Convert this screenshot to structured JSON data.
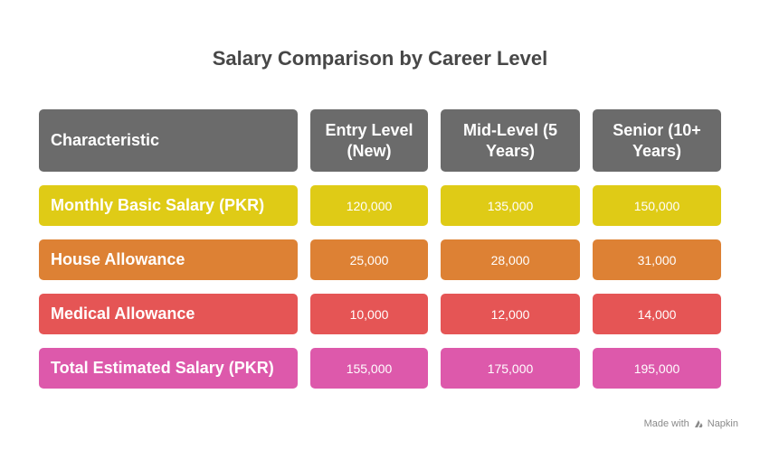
{
  "title": "Salary Comparison by Career Level",
  "table": {
    "headers": [
      "Characteristic",
      "Entry Level (New)",
      "Mid-Level (5 Years)",
      "Senior (10+ Years)"
    ],
    "rows": [
      {
        "label": "Monthly Basic Salary (PKR)",
        "values": [
          "120,000",
          "135,000",
          "150,000"
        ],
        "color": "#dfcb16"
      },
      {
        "label": "House Allowance",
        "values": [
          "25,000",
          "28,000",
          "31,000"
        ],
        "color": "#dd8134"
      },
      {
        "label": "Medical Allowance",
        "values": [
          "10,000",
          "12,000",
          "14,000"
        ],
        "color": "#e55555"
      },
      {
        "label": "Total Estimated Salary (PKR)",
        "values": [
          "155,000",
          "175,000",
          "195,000"
        ],
        "color": "#dd59ab"
      }
    ]
  },
  "footer": {
    "made_with": "Made with",
    "brand": "Napkin",
    "icon": "napkin-logo-icon"
  }
}
